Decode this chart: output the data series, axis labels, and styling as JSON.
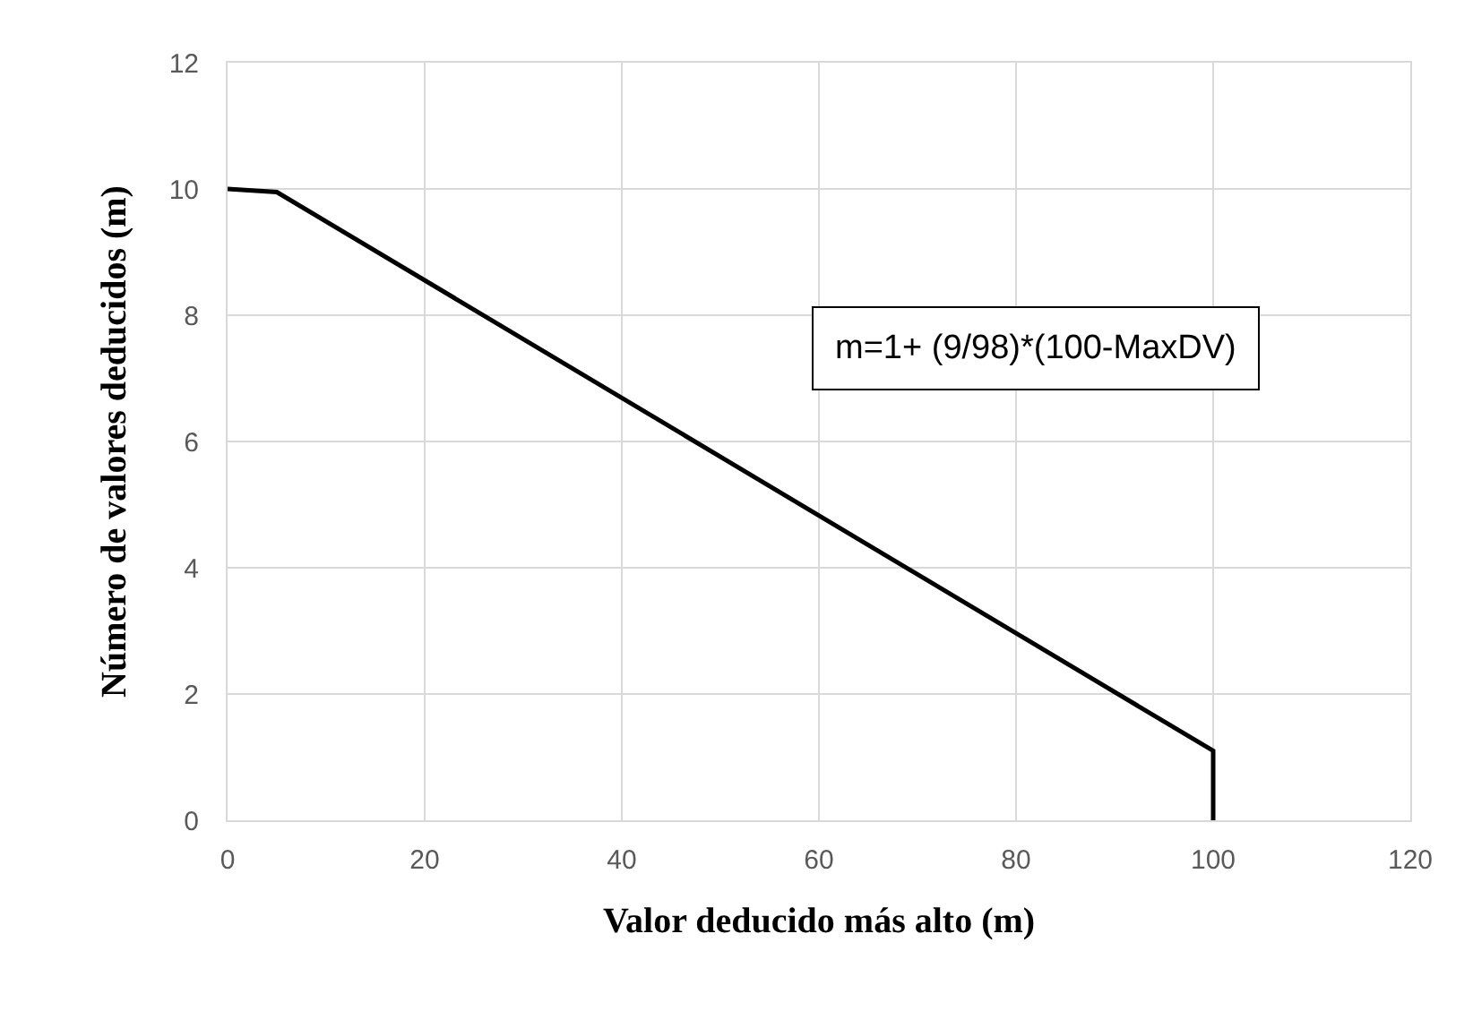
{
  "chart_data": {
    "type": "line",
    "xlabel": "Valor deducido más alto (m)",
    "ylabel": "Número de valores deducidos (m)",
    "x": [
      0,
      5,
      100,
      100
    ],
    "series": [
      {
        "color": "#000000",
        "values": [
          10,
          9.95,
          1.1,
          0
        ]
      }
    ],
    "xlim": [
      0,
      120
    ],
    "xticks": [
      0,
      20,
      40,
      60,
      80,
      100,
      120
    ],
    "ylim": [
      0,
      12
    ],
    "yticks": [
      0,
      2,
      4,
      6,
      8,
      10,
      12
    ],
    "grid": true,
    "marker": "none",
    "line_style": "solid",
    "annotations": [
      "m=1+ (9/98)*(100-MaxDV)"
    ]
  }
}
